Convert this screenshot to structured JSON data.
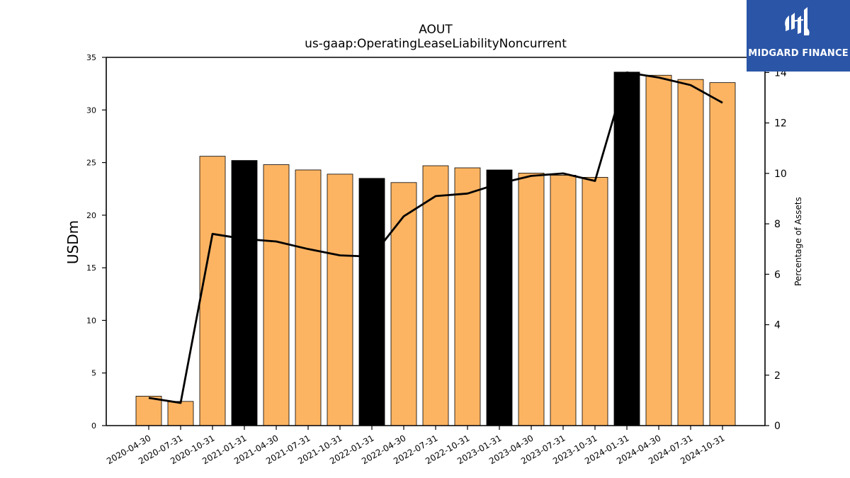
{
  "chart_data": {
    "type": "bar",
    "title": "AOUT",
    "subtitle": "us-gaap:OperatingLeaseLiabilityNoncurrent",
    "ylabel": "USDm",
    "y2label": "Percentage of Assets",
    "ylim": [
      0,
      35
    ],
    "y2lim": [
      0,
      14.6
    ],
    "yticks": [
      0,
      5,
      10,
      15,
      20,
      25,
      30,
      35
    ],
    "y2ticks": [
      0,
      2,
      4,
      6,
      8,
      10,
      12,
      14
    ],
    "categories": [
      "2020-04-30",
      "2020-07-31",
      "2020-10-31",
      "2021-01-31",
      "2021-04-30",
      "2021-07-31",
      "2021-10-31",
      "2022-01-31",
      "2022-04-30",
      "2022-07-31",
      "2022-10-31",
      "2023-01-31",
      "2023-04-30",
      "2023-07-31",
      "2023-10-31",
      "2024-01-31",
      "2024-04-30",
      "2024-07-31",
      "2024-10-31"
    ],
    "series": [
      {
        "type": "bar",
        "axis": "left",
        "values": [
          2.8,
          2.3,
          25.6,
          25.2,
          24.8,
          24.3,
          23.9,
          23.5,
          23.1,
          24.7,
          24.5,
          24.3,
          24.0,
          23.8,
          23.6,
          33.6,
          33.3,
          32.9,
          32.6
        ],
        "colors": [
          "#fdb462",
          "#fdb462",
          "#fdb462",
          "#000000",
          "#fdb462",
          "#fdb462",
          "#fdb462",
          "#000000",
          "#fdb462",
          "#fdb462",
          "#fdb462",
          "#000000",
          "#fdb462",
          "#fdb462",
          "#fdb462",
          "#000000",
          "#fdb462",
          "#fdb462",
          "#fdb462"
        ]
      },
      {
        "type": "line",
        "axis": "right",
        "color": "#000000",
        "values": [
          1.1,
          0.9,
          7.6,
          7.4,
          7.3,
          7.0,
          6.75,
          6.7,
          8.3,
          9.1,
          9.2,
          9.6,
          9.9,
          10.0,
          9.7,
          14.0,
          13.8,
          13.5,
          12.8
        ]
      }
    ]
  },
  "logo": {
    "text": "MIDGARD FINANCE",
    "color": "#2b56a8"
  }
}
